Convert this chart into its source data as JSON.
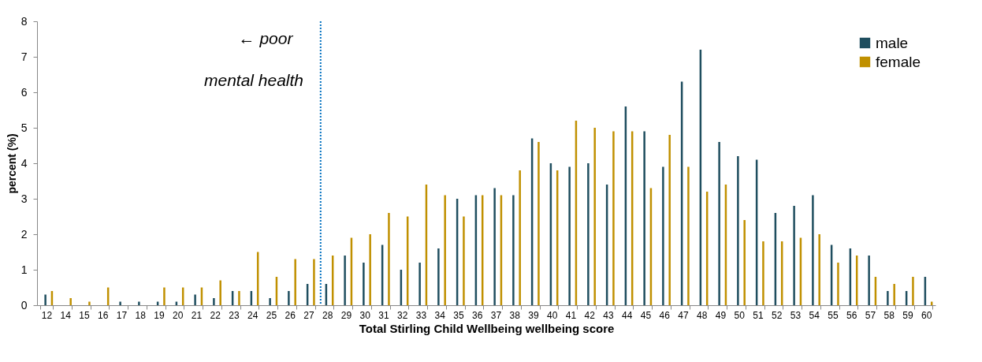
{
  "chart_data": {
    "type": "bar",
    "xlabel": "Total Stirling Child Wellbeing wellbeing score",
    "ylabel": "percent (%)",
    "categories": [
      "12",
      "14",
      "15",
      "16",
      "17",
      "18",
      "19",
      "20",
      "21",
      "22",
      "23",
      "24",
      "25",
      "26",
      "27",
      "28",
      "29",
      "30",
      "31",
      "32",
      "33",
      "34",
      "35",
      "36",
      "37",
      "38",
      "39",
      "40",
      "41",
      "42",
      "43",
      "44",
      "45",
      "46",
      "47",
      "48",
      "49",
      "50",
      "51",
      "52",
      "53",
      "54",
      "55",
      "56",
      "57",
      "58",
      "59",
      "60"
    ],
    "series": [
      {
        "name": "male",
        "color": "#1f4e5f",
        "values": [
          0.3,
          0,
          0,
          0,
          0.1,
          0.1,
          0.1,
          0.1,
          0.3,
          0.2,
          0.4,
          0.4,
          0.2,
          0.4,
          0.6,
          0.6,
          1.4,
          1.2,
          1.7,
          1.0,
          1.2,
          1.6,
          3.0,
          3.1,
          3.3,
          3.1,
          4.7,
          4.0,
          3.9,
          4.0,
          3.4,
          5.6,
          4.9,
          3.9,
          6.3,
          7.2,
          4.6,
          4.2,
          4.1,
          2.6,
          2.8,
          3.1,
          1.7,
          1.6,
          1.4,
          0.4,
          0.4,
          0.8
        ]
      },
      {
        "name": "female",
        "color": "#c09000",
        "values": [
          0.4,
          0.2,
          0.1,
          0.5,
          0,
          0,
          0.5,
          0.5,
          0.5,
          0.7,
          0.4,
          1.5,
          0.8,
          1.3,
          1.3,
          1.4,
          1.9,
          2.0,
          2.6,
          2.5,
          3.4,
          3.1,
          2.5,
          3.1,
          3.1,
          3.8,
          4.6,
          3.8,
          5.2,
          5.0,
          4.9,
          4.9,
          3.3,
          4.8,
          3.9,
          3.2,
          3.4,
          2.4,
          1.8,
          1.8,
          1.9,
          2.0,
          1.2,
          1.4,
          0.8,
          0.6,
          0.8,
          0.1
        ]
      }
    ],
    "ylim": [
      0,
      8
    ],
    "yticks": [
      0,
      1,
      2,
      3,
      4,
      5,
      6,
      7,
      8
    ],
    "ref_lines": [
      {
        "axis": "x",
        "value": "28",
        "color": "#0070c0",
        "line_style": "dotted"
      }
    ],
    "annotations": [
      "← poor",
      "mental health"
    ],
    "legend": "top right"
  }
}
